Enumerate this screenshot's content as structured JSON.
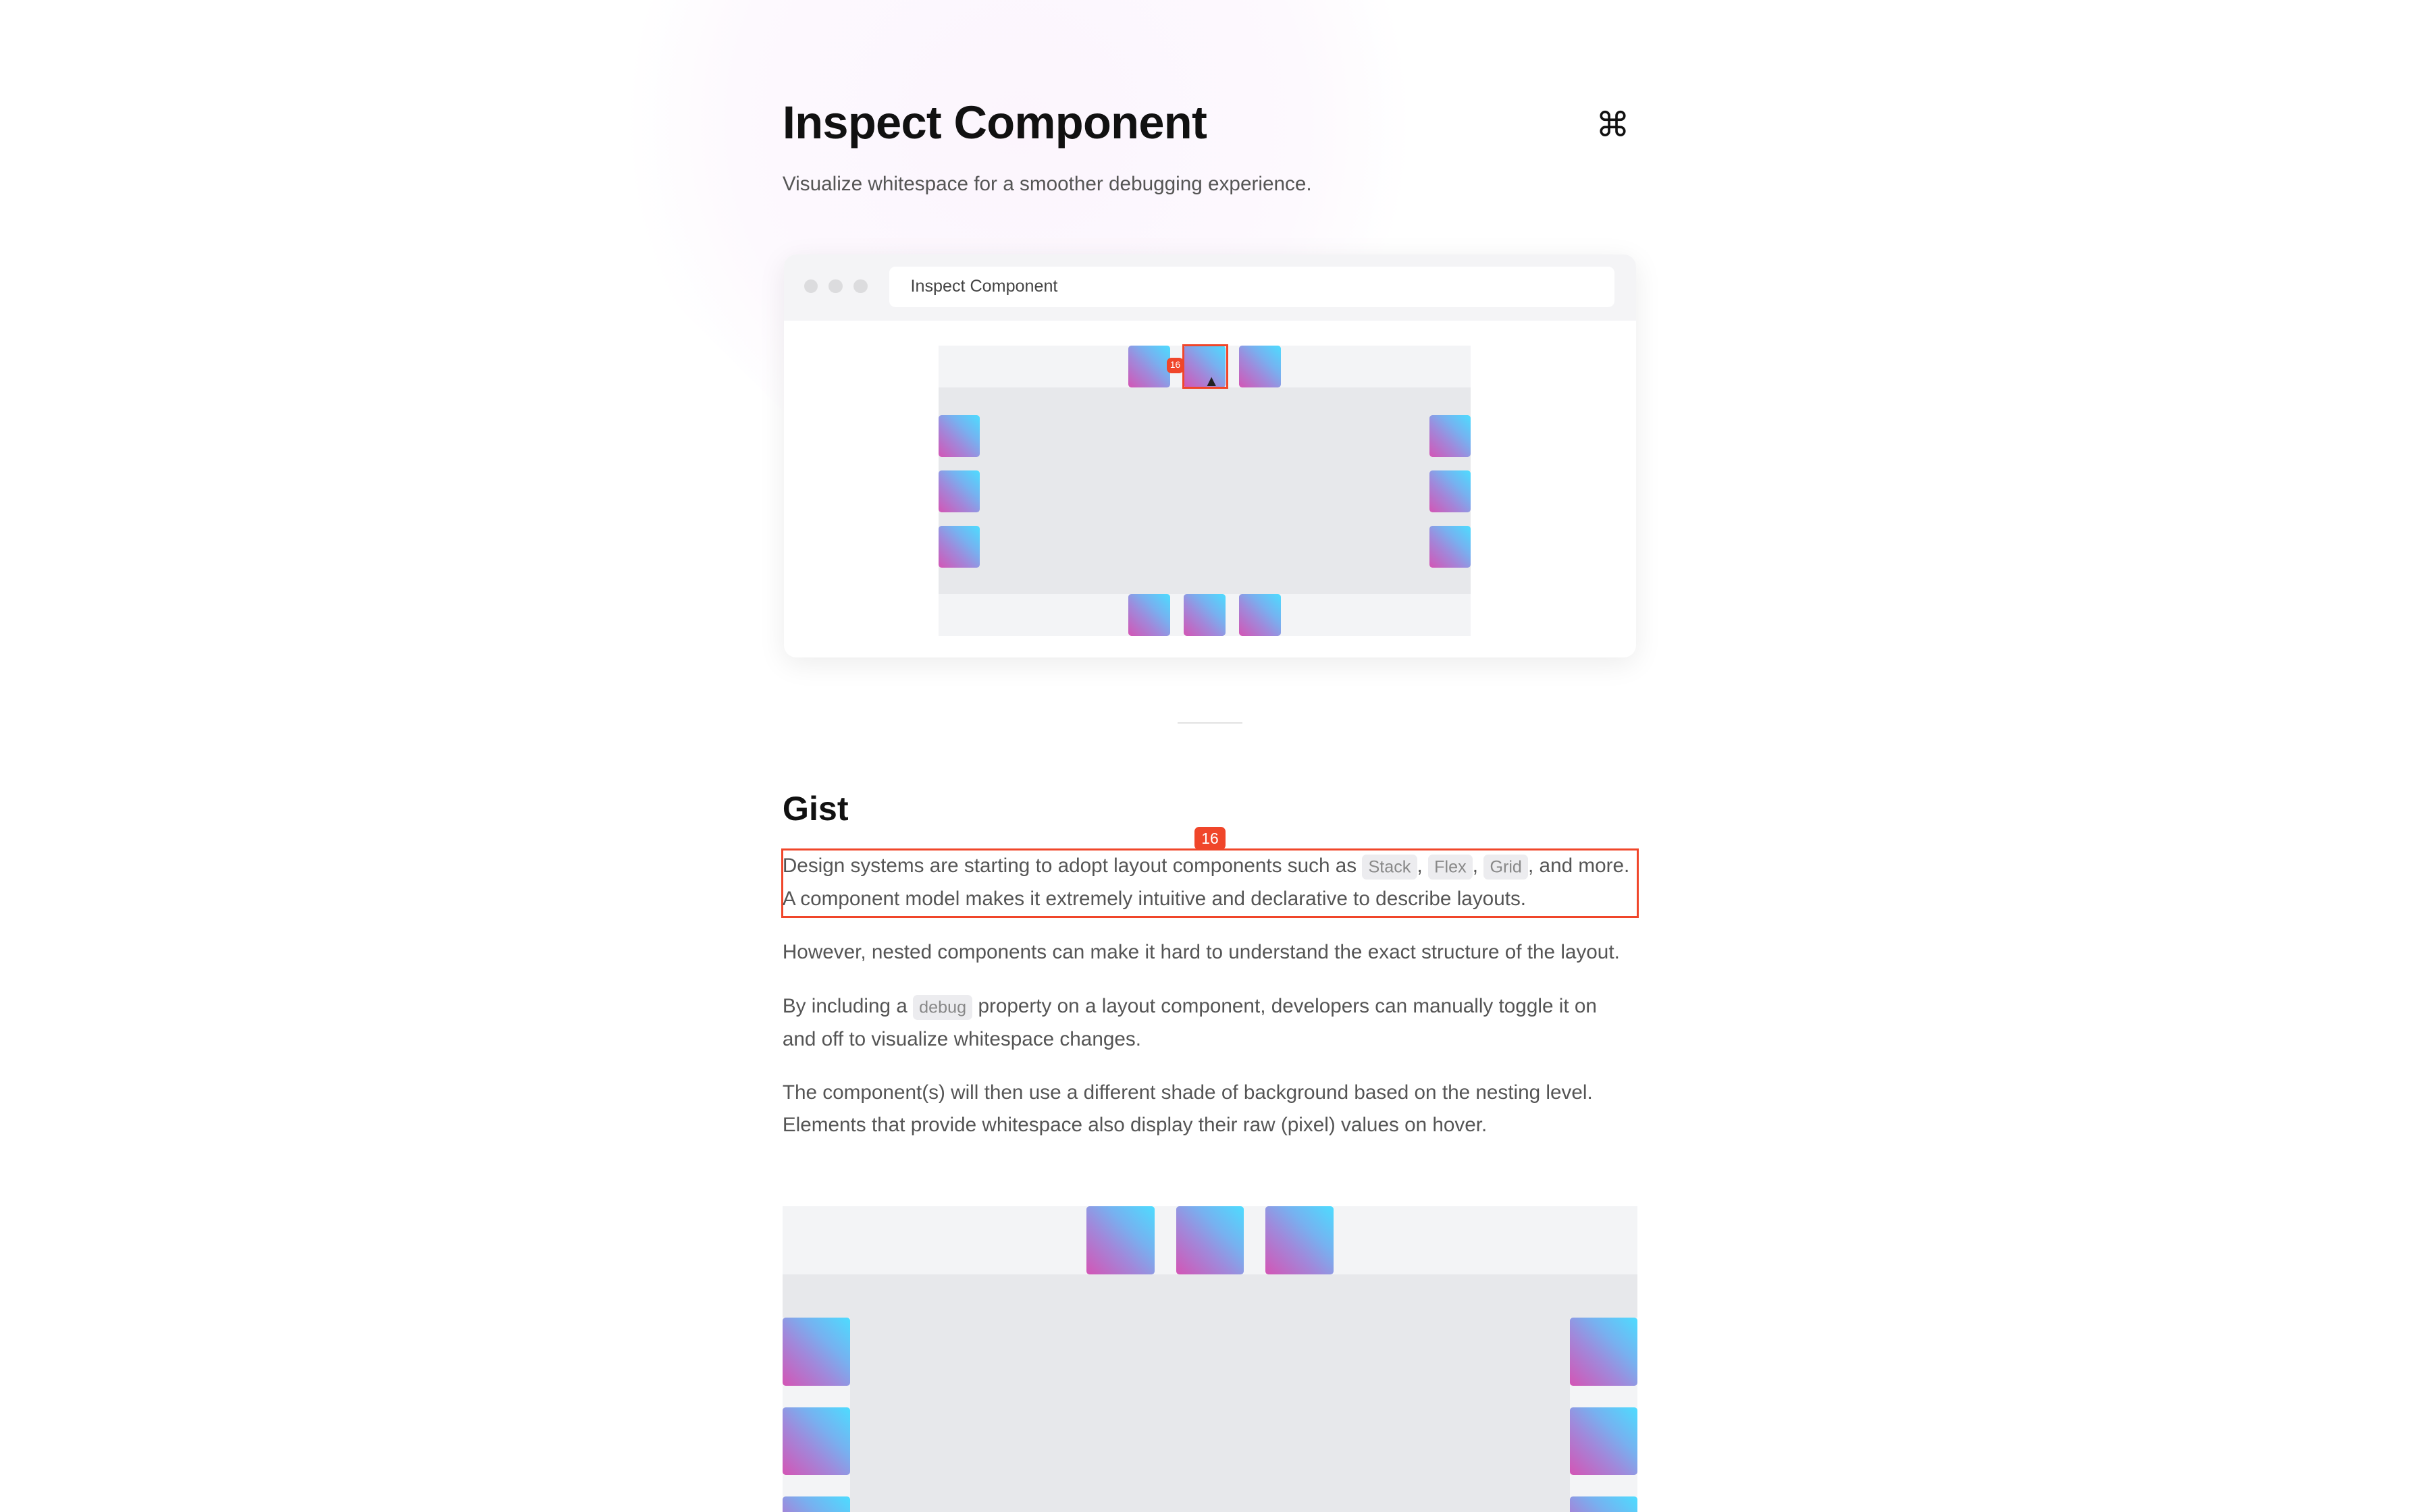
{
  "header": {
    "title": "Inspect Component",
    "subtitle": "Visualize whitespace for a smoother debugging experience.",
    "shortcut_icon": "command-icon",
    "shortcut_glyph": "⌘"
  },
  "preview_window": {
    "address": "Inspect Component",
    "spacing_badge": "16"
  },
  "gist": {
    "title": "Gist",
    "spacing_badge": "16",
    "p1_before": "Design systems are starting to adopt layout components such as ",
    "p1_code": [
      "Stack",
      "Flex",
      "Grid"
    ],
    "p1_after": ", and more. A component model makes it extremely intuitive and declarative to describe layouts.",
    "p2": "However, nested components can make it hard to understand the exact structure of the layout.",
    "p3_before": "By including a ",
    "p3_code": "debug",
    "p3_after": " property on a layout component, developers can manually toggle it on and off to visualize whitespace changes.",
    "p4": "The component(s) will then use a different shade of background based on the nesting level. Elements that provide whitespace also display their raw (pixel) values on hover."
  },
  "colors": {
    "highlight": "#f0462a",
    "outer_bg": "#f3f4f6",
    "inner_bg": "#e7e8eb"
  }
}
